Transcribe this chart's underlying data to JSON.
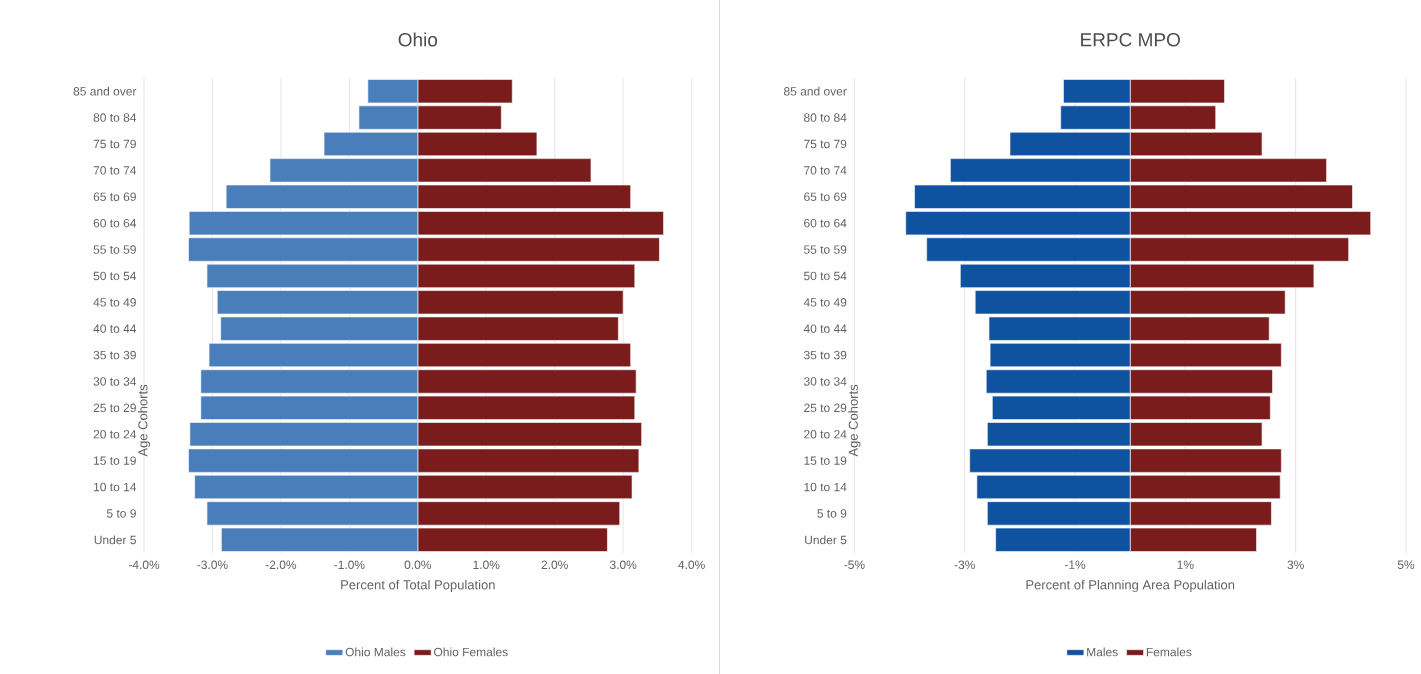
{
  "chart_data": [
    {
      "type": "bar",
      "orientation": "horizontal",
      "title": "Ohio",
      "xlabel": "Percent of Total Population",
      "ylabel": "Age Cohorts",
      "categories": [
        "85 and over",
        "80 to 84",
        "75 to 79",
        "70 to 74",
        "65 to 69",
        "60 to 64",
        "55 to 59",
        "50 to 54",
        "45 to 49",
        "40 to 44",
        "35 to 39",
        "30 to 34",
        "25 to 29",
        "20 to 24",
        "15 to 19",
        "10 to 14",
        "5 to 9",
        "Under 5"
      ],
      "series": [
        {
          "name": "Ohio Males",
          "color": "#4a7ebb",
          "values": [
            -0.73,
            -0.86,
            -1.37,
            -2.16,
            -2.8,
            -3.34,
            -3.35,
            -3.08,
            -2.93,
            -2.88,
            -3.05,
            -3.17,
            -3.17,
            -3.33,
            -3.35,
            -3.26,
            -3.08,
            -2.87
          ]
        },
        {
          "name": "Ohio Females",
          "color": "#7b1c1c",
          "values": [
            1.38,
            1.22,
            1.74,
            2.53,
            3.11,
            3.59,
            3.53,
            3.17,
            3.0,
            2.93,
            3.11,
            3.19,
            3.17,
            3.27,
            3.23,
            3.13,
            2.95,
            2.77
          ]
        }
      ],
      "xlim": [
        -4,
        4
      ],
      "xticks": [
        {
          "value": -4,
          "label": "-4.0%"
        },
        {
          "value": -3,
          "label": "-3.0%"
        },
        {
          "value": -2,
          "label": "-2.0%"
        },
        {
          "value": -1,
          "label": "-1.0%"
        },
        {
          "value": 0,
          "label": "0.0%"
        },
        {
          "value": 1,
          "label": "1.0%"
        },
        {
          "value": 2,
          "label": "2.0%"
        },
        {
          "value": 3,
          "label": "3.0%"
        },
        {
          "value": 4,
          "label": "4.0%"
        }
      ],
      "grid": "x",
      "legend": "bottom",
      "stacked": true
    },
    {
      "type": "bar",
      "orientation": "horizontal",
      "title": "ERPC MPO",
      "xlabel": "Percent of Planning Area Population",
      "ylabel": "Age Cohorts",
      "categories": [
        "85 and over",
        "80 to 84",
        "75 to 79",
        "70 to 74",
        "65 to 69",
        "60 to 64",
        "55 to 59",
        "50 to 54",
        "45 to 49",
        "40 to 44",
        "35 to 39",
        "30 to 34",
        "25 to 29",
        "20 to 24",
        "15 to 19",
        "10 to 14",
        "5 to 9",
        "Under 5"
      ],
      "series": [
        {
          "name": "Males",
          "color": "#0f52a0",
          "values": [
            -1.21,
            -1.26,
            -2.18,
            -3.26,
            -3.91,
            -4.07,
            -3.69,
            -3.08,
            -2.81,
            -2.56,
            -2.54,
            -2.61,
            -2.5,
            -2.59,
            -2.91,
            -2.78,
            -2.59,
            -2.44
          ]
        },
        {
          "name": "Females",
          "color": "#7b1c1c",
          "values": [
            1.71,
            1.55,
            2.39,
            3.56,
            4.03,
            4.36,
            3.96,
            3.33,
            2.81,
            2.52,
            2.74,
            2.58,
            2.54,
            2.39,
            2.74,
            2.72,
            2.56,
            2.29
          ]
        }
      ],
      "xlim": [
        -5,
        5
      ],
      "xticks": [
        {
          "value": -5,
          "label": "-5%"
        },
        {
          "value": -3,
          "label": "-3%"
        },
        {
          "value": -1,
          "label": "-1%"
        },
        {
          "value": 1,
          "label": "1%"
        },
        {
          "value": 3,
          "label": "3%"
        },
        {
          "value": 5,
          "label": "5%"
        }
      ],
      "grid": "x",
      "legend": "bottom",
      "stacked": true
    }
  ]
}
